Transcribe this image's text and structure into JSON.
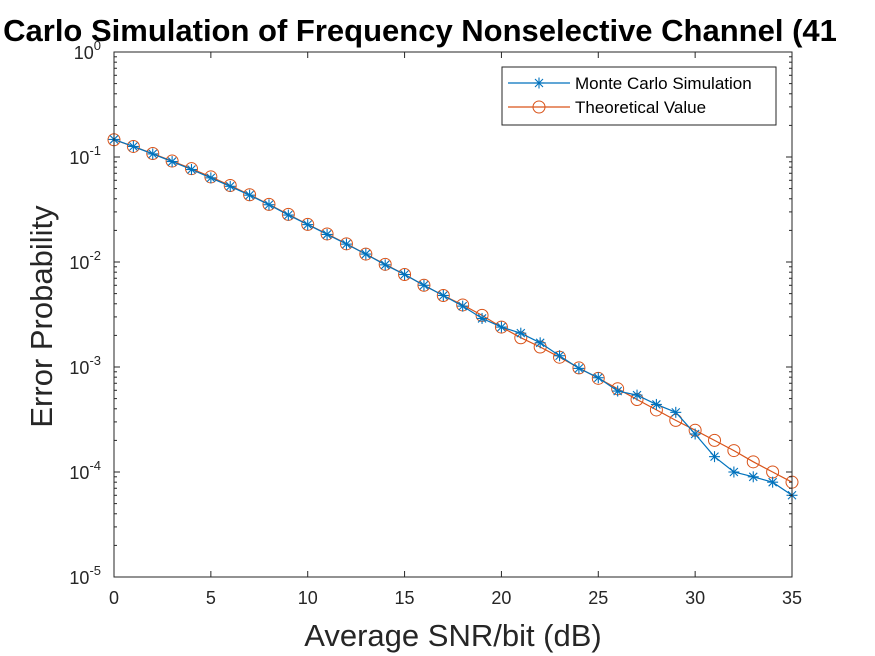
{
  "chart_data": {
    "type": "line",
    "title": "Carlo Simulation of Frequency Nonselective Channel (41",
    "xlabel": "Average SNR/bit (dB)",
    "ylabel": "Error Probability",
    "xlim": [
      0,
      35
    ],
    "ylim": [
      1e-05,
      1
    ],
    "yscale": "log",
    "grid": false,
    "legend_position": "top-right",
    "x_ticks": [
      0,
      5,
      10,
      15,
      20,
      25,
      30,
      35
    ],
    "y_ticks": [
      {
        "value": 1e-05,
        "base": "10",
        "exp": "-5"
      },
      {
        "value": 0.0001,
        "base": "10",
        "exp": "-4"
      },
      {
        "value": 0.001,
        "base": "10",
        "exp": "-3"
      },
      {
        "value": 0.01,
        "base": "10",
        "exp": "-2"
      },
      {
        "value": 0.1,
        "base": "10",
        "exp": "-1"
      },
      {
        "value": 1,
        "base": "10",
        "exp": "0"
      }
    ],
    "x": [
      0,
      1,
      2,
      3,
      4,
      5,
      6,
      7,
      8,
      9,
      10,
      11,
      12,
      13,
      14,
      15,
      16,
      17,
      18,
      19,
      20,
      21,
      22,
      23,
      24,
      25,
      26,
      27,
      28,
      29,
      30,
      31,
      32,
      33,
      34,
      35
    ],
    "series": [
      {
        "name": "Monte Carlo Simulation",
        "color": "#0072BD",
        "marker": "asterisk",
        "values": [
          0.147,
          0.126,
          0.107,
          0.0905,
          0.076,
          0.0633,
          0.0526,
          0.0433,
          0.0351,
          0.028,
          0.0227,
          0.0183,
          0.0148,
          0.0119,
          0.0094,
          0.0076,
          0.006,
          0.0048,
          0.0038,
          0.0029,
          0.0024,
          0.0021,
          0.0017,
          0.00128,
          0.00097,
          0.00079,
          0.00059,
          0.00054,
          0.00044,
          0.00037,
          0.00023,
          0.00014,
          0.0001,
          9e-05,
          8e-05,
          6e-05
        ]
      },
      {
        "name": "Theoretical Value",
        "color": "#D95319",
        "marker": "circle",
        "values": [
          0.146,
          0.126,
          0.108,
          0.0915,
          0.0774,
          0.0646,
          0.0535,
          0.0437,
          0.0354,
          0.0284,
          0.0228,
          0.0185,
          0.0149,
          0.0119,
          0.0095,
          0.0076,
          0.006,
          0.0048,
          0.0039,
          0.0031,
          0.0024,
          0.0019,
          0.00155,
          0.00124,
          0.00098,
          0.00078,
          0.00062,
          0.00049,
          0.00039,
          0.00031,
          0.00025,
          0.0002,
          0.00016,
          0.000125,
          0.0001,
          8e-05
        ]
      }
    ]
  }
}
